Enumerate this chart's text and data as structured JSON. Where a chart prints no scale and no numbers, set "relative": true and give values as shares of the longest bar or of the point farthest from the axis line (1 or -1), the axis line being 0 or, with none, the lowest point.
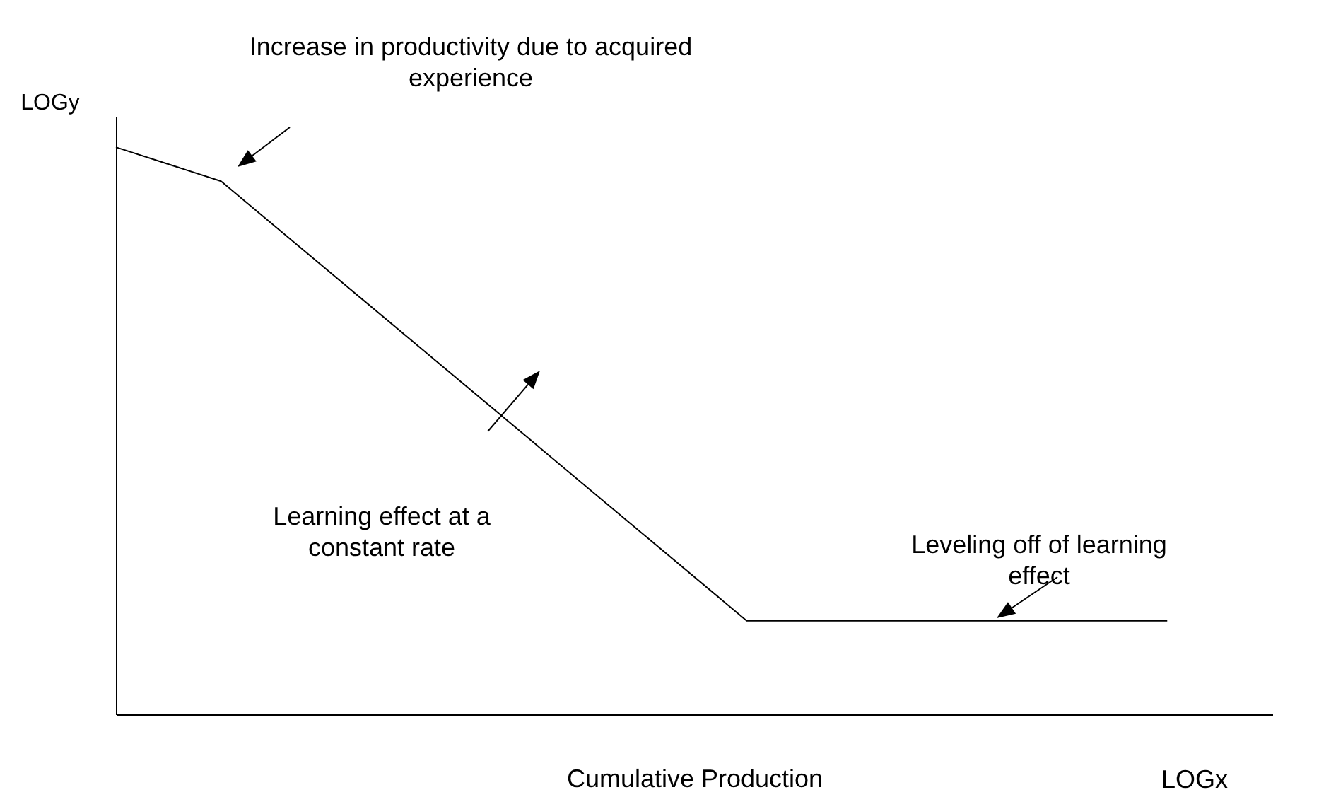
{
  "chart_data": {
    "type": "line",
    "xlabel": "Cumulative Production",
    "ylabel": "LOGy",
    "relative": true,
    "tick_labels": false,
    "grid": false,
    "legend": false,
    "marker": "none",
    "line_style": "solid",
    "categories": [
      null,
      null,
      null,
      null,
      null,
      null,
      null,
      null,
      null,
      null,
      null,
      null
    ],
    "series": [
      {
        "color": "#000000",
        "values": [
          1,
          0.94,
          0.785,
          0.63,
          0.475,
          0.32,
          0.165,
          0.165,
          0.165,
          0.165,
          0.165,
          null
        ]
      }
    ],
    "annotations": [
      "Increase in productivity due to acquired experience",
      "Learning effect at a constant rate",
      "Leveling off of learning effect",
      "LOGx"
    ]
  }
}
